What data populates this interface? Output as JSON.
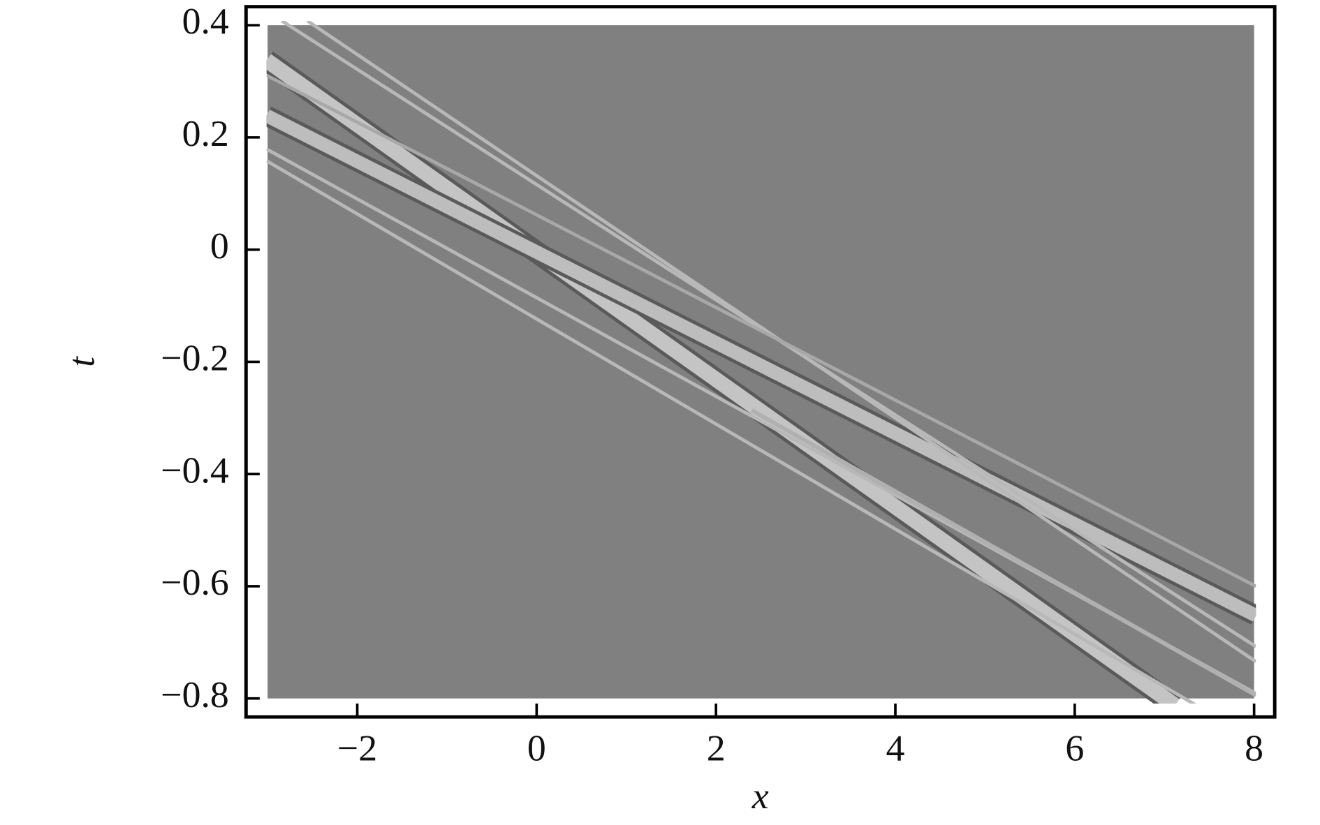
{
  "chart_data": {
    "type": "density",
    "xlabel": "x",
    "ylabel": "t",
    "extent": {
      "x": [
        -3,
        8
      ],
      "t": [
        -0.8,
        0.4
      ]
    },
    "background": "#808080",
    "xlim": [
      -3.24,
      8.23
    ],
    "ylim": [
      -0.833,
      0.433
    ],
    "xticks": [
      {
        "value": -2,
        "label": "−2"
      },
      0,
      2,
      4,
      6,
      8
    ],
    "yticks": [
      0.4,
      0.2,
      0,
      {
        "value": -0.2,
        "label": "−0.2"
      },
      {
        "value": -0.4,
        "label": "−0.4"
      },
      {
        "value": -0.6,
        "label": "−0.6"
      },
      {
        "value": -0.8,
        "label": "−0.8"
      }
    ]
  }
}
